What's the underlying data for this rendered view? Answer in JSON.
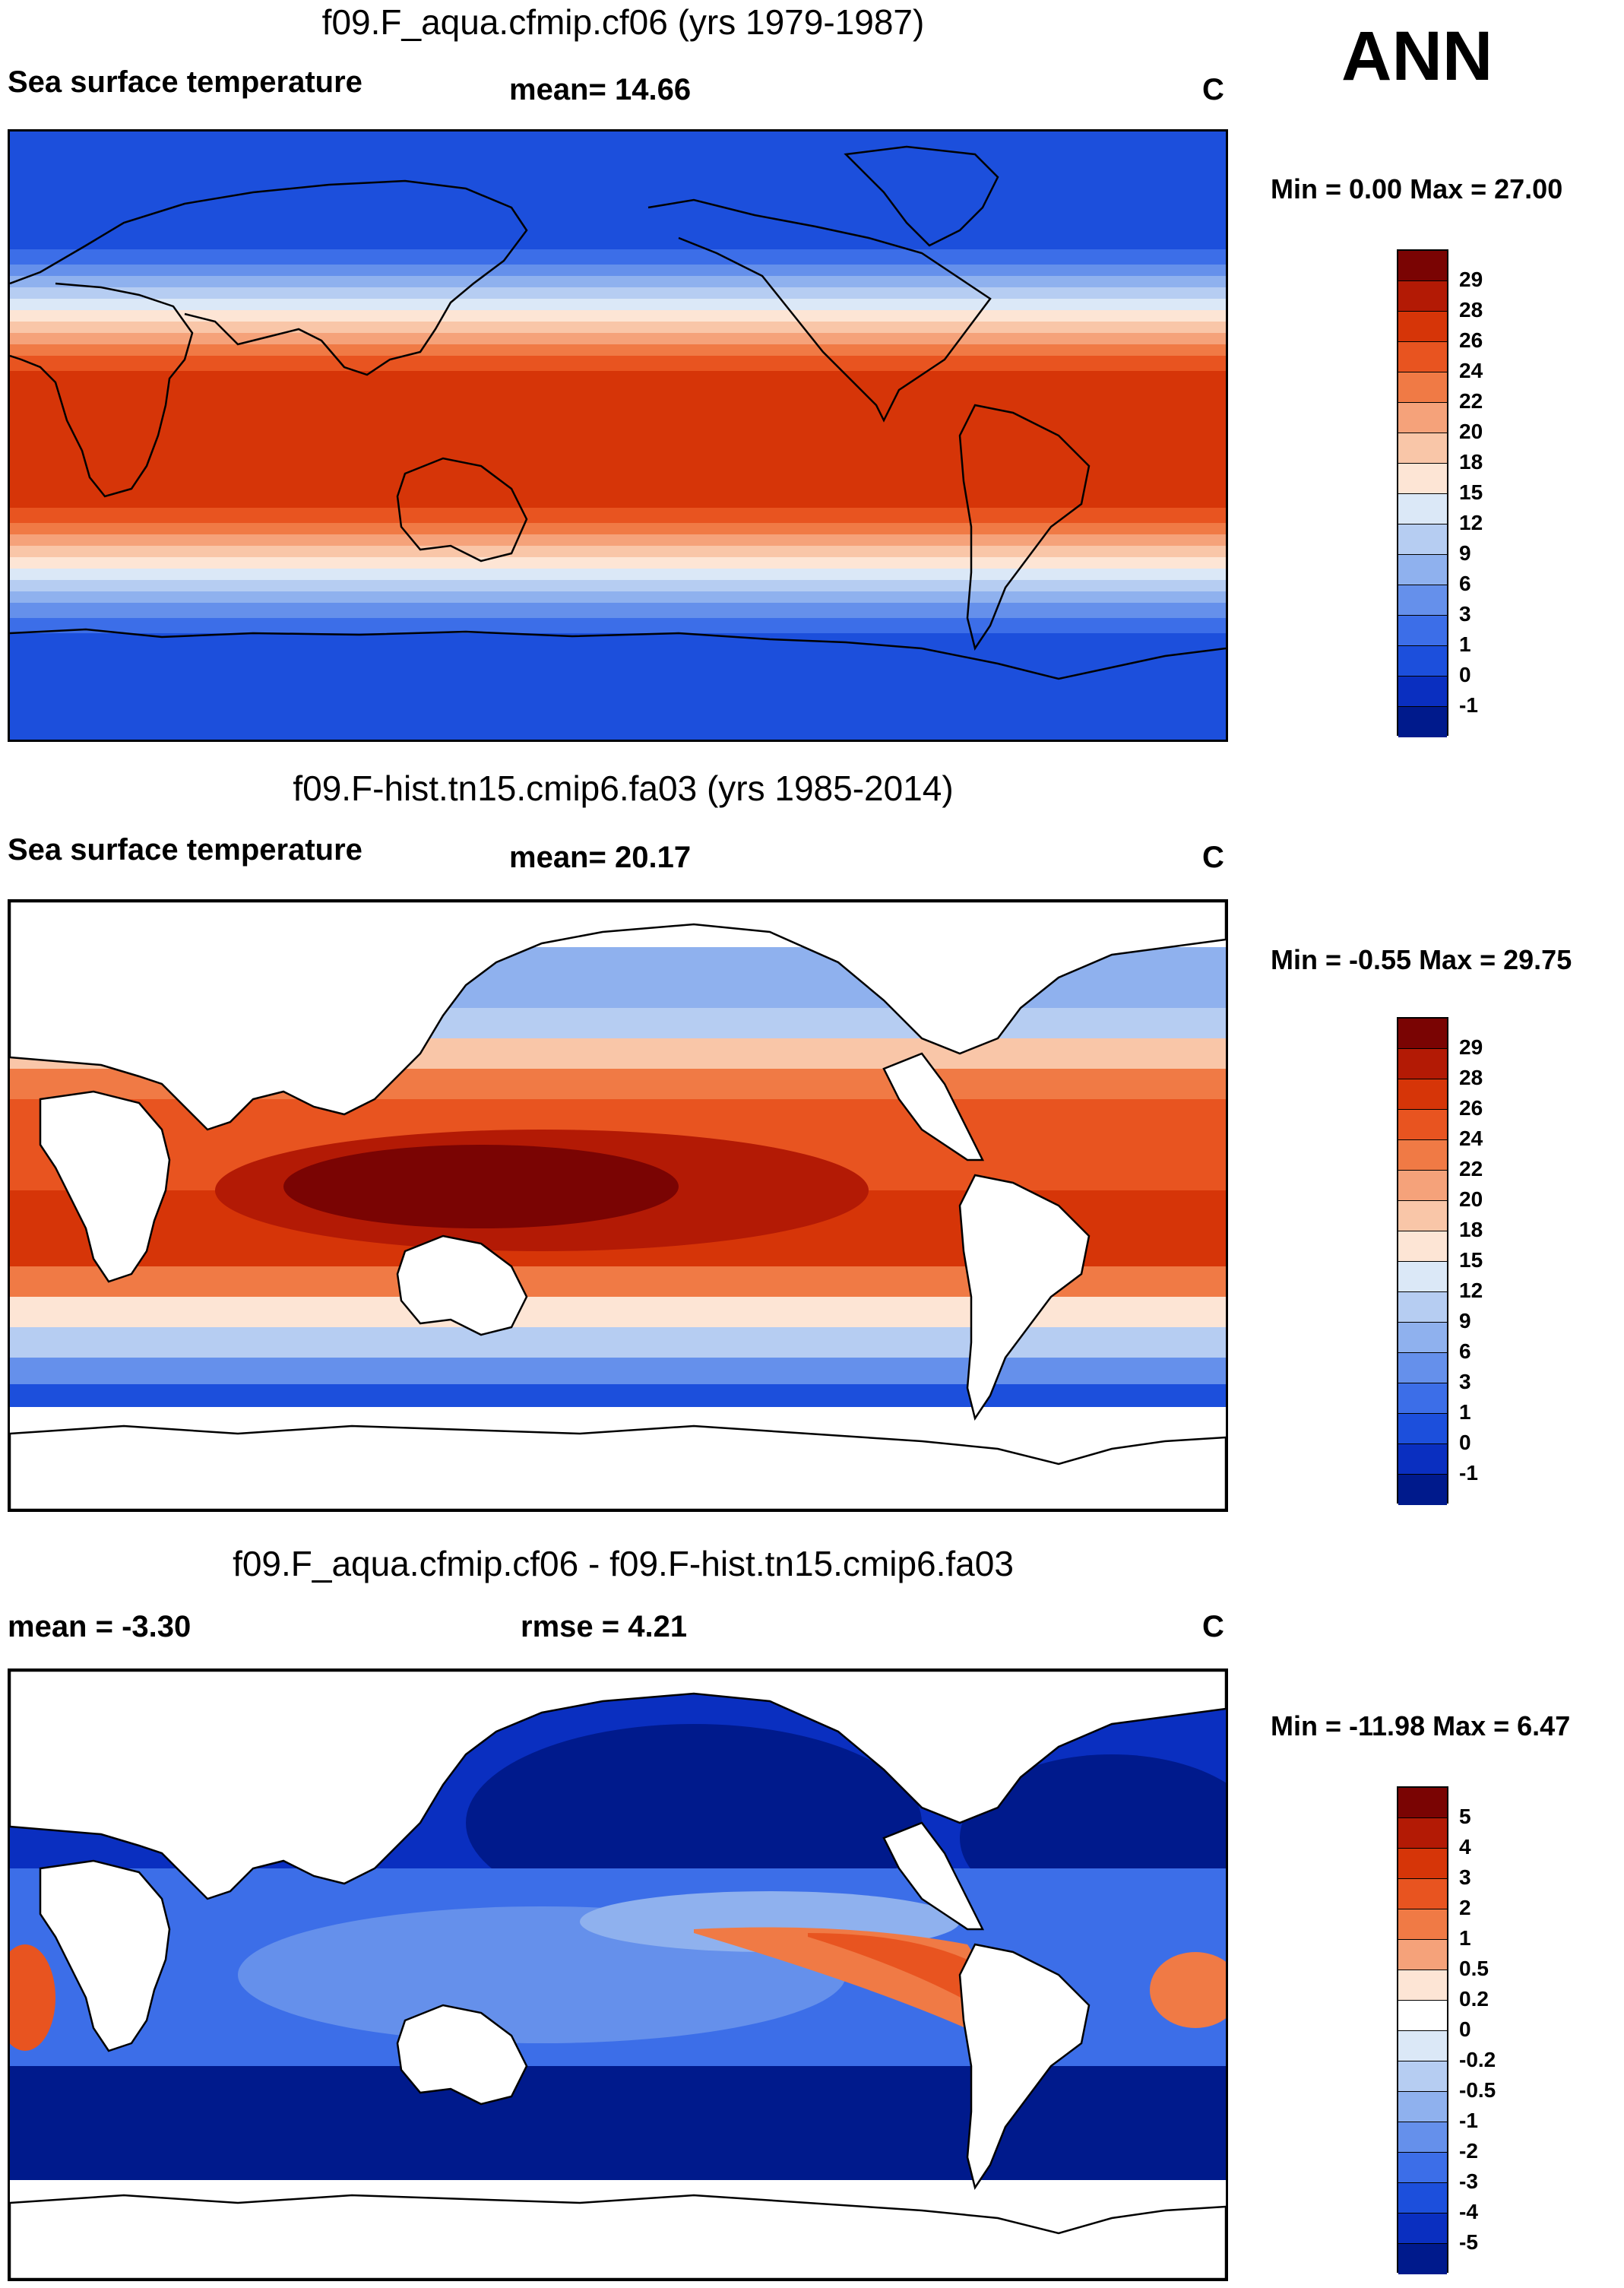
{
  "season": "ANN",
  "units": "C",
  "panels": [
    {
      "title": "f09.F_aqua.cfmip.cf06 (yrs 1979-1987)",
      "variable": "Sea surface temperature",
      "stat1": "mean=  14.66",
      "units": "C",
      "minmax": "Min =   0.00 Max =  27.00"
    },
    {
      "title": "f09.F-hist.tn15.cmip6.fa03 (yrs 1985-2014)",
      "variable": "Sea surface temperature",
      "stat1": "mean=  20.17",
      "units": "C",
      "minmax": "Min =  -0.55 Max =  29.75"
    },
    {
      "title": "f09.F_aqua.cfmip.cf06 - f09.F-hist.tn15.cmip6.fa03",
      "variable": "mean =  -3.30",
      "stat1": "rmse =    4.21",
      "units": "C",
      "minmax": "Min = -11.98 Max =   6.47"
    }
  ],
  "colorbar_sst": {
    "levels": [
      "29",
      "28",
      "26",
      "24",
      "22",
      "20",
      "18",
      "15",
      "12",
      "9",
      "6",
      "3",
      "1",
      "0",
      "-1"
    ],
    "colors": [
      "#7a0403",
      "#b31a05",
      "#d63508",
      "#e85420",
      "#f07a45",
      "#f5a27a",
      "#f9c6a8",
      "#fde5d5",
      "#dbe8f7",
      "#b6cdf2",
      "#8fb1ee",
      "#6590eb",
      "#3c6ee8",
      "#1c4fdc",
      "#0a2fc0",
      "#001a8c"
    ]
  },
  "colorbar_diff": {
    "levels": [
      "5",
      "4",
      "3",
      "2",
      "1",
      "0.5",
      "0.2",
      "0",
      "-0.2",
      "-0.5",
      "-1",
      "-2",
      "-3",
      "-4",
      "-5"
    ],
    "colors": [
      "#7a0403",
      "#b31a05",
      "#d63508",
      "#e85420",
      "#f07a45",
      "#f5a27a",
      "#fde5d5",
      "#ffffff",
      "#dbe8f7",
      "#b6cdf2",
      "#8fb1ee",
      "#6590eb",
      "#3c6ee8",
      "#1c4fdc",
      "#0a2fc0",
      "#001a8c"
    ]
  }
}
